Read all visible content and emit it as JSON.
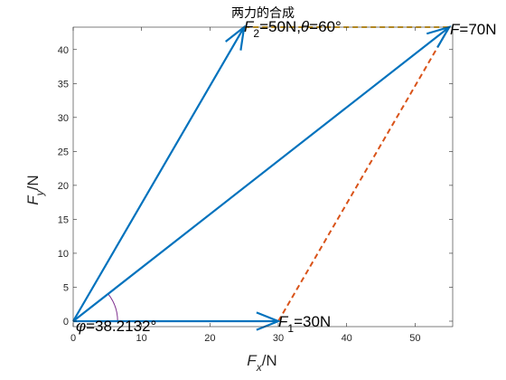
{
  "chart_data": {
    "type": "line",
    "title": "两力的合成",
    "xlabel_symbol": "F",
    "xlabel_sub": "x",
    "xlabel_unit": "/N",
    "ylabel_symbol": "F",
    "ylabel_sub": "y",
    "ylabel_unit": "/N",
    "xlim": [
      0,
      55.5
    ],
    "ylim": [
      -0.8,
      43.3
    ],
    "xticks": [
      0,
      10,
      20,
      30,
      40,
      50
    ],
    "yticks": [
      0,
      5,
      10,
      15,
      20,
      25,
      30,
      35,
      40
    ],
    "grid": false,
    "vectors": [
      {
        "id": "F1",
        "from": [
          0,
          0
        ],
        "to": [
          30,
          0
        ],
        "color": "#0072BD",
        "style": "arrow"
      },
      {
        "id": "F2",
        "from": [
          0,
          0
        ],
        "to": [
          25,
          43.3013
        ],
        "color": "#0072BD",
        "style": "arrow"
      },
      {
        "id": "F",
        "from": [
          0,
          0
        ],
        "to": [
          55,
          43.3013
        ],
        "color": "#0072BD",
        "style": "arrow"
      }
    ],
    "parallelogram_edges": [
      {
        "from": [
          30,
          0
        ],
        "to": [
          55,
          43.3013
        ],
        "color": "#D95319",
        "style": "dashed"
      },
      {
        "from": [
          25,
          43.3013
        ],
        "to": [
          55,
          43.3013
        ],
        "color": "#EDB120",
        "style": "dashed"
      }
    ],
    "angle_arc": {
      "radius": 6.5,
      "from_deg": 0,
      "to_deg": 38.2132,
      "color": "#7E2F8E"
    },
    "annotations": {
      "f1_symbol": "F",
      "f1_sub": "1",
      "f1_text": "=30N",
      "f2_symbol": "F",
      "f2_sub": "2",
      "f2_text": "=50N,",
      "f2_theta": "θ",
      "f2_theta_text": "=60°",
      "f_symbol": "F",
      "f_text": "=70N",
      "phi_symbol": "φ",
      "phi_text": "=38.2132°"
    }
  }
}
